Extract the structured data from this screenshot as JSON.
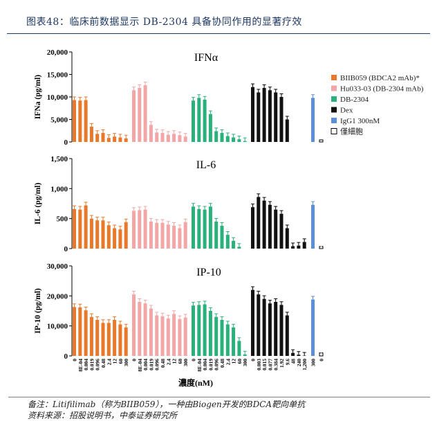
{
  "header": {
    "title": "图表48：临床前数据显示 DB-2304 具备协同作用的显著疗效"
  },
  "footnote": {
    "line1": "备注：Litifilimab（称为BIIB059），一种由Biogen开发的BDCA靶向单抗",
    "line2": "资料来源：招股说明书，中泰证券研究所"
  },
  "colors": {
    "biib059": "#e8782a",
    "hu033": "#f2a6a6",
    "db2304": "#2ab07a",
    "dex": "#111111",
    "igg1": "#5b8fd6",
    "cells": "#ffffff"
  },
  "chart_data": [
    {
      "type": "bar",
      "title": "IFNα",
      "ylabel": "IFNa (pg/ml)",
      "xlabel": "濃度(nM)",
      "ylim": [
        0,
        20000
      ],
      "yticks": [
        "0",
        "5,000",
        "10,000",
        "15,000",
        "20,000"
      ],
      "series": [
        {
          "name": "BIIB059 (BDCA2 mAb)*",
          "values": [
            9300,
            9200,
            9300,
            3400,
            1800,
            2000,
            900,
            1200,
            1000,
            800
          ]
        },
        {
          "name": "Hu033-03 (DB-2304 mAb)",
          "values": [
            11500,
            12000,
            12600,
            3800,
            2100,
            2000,
            1600,
            1800,
            1500,
            1200
          ]
        },
        {
          "name": "DB-2304",
          "values": [
            9200,
            9800,
            9400,
            6200,
            2400,
            2000,
            1300,
            1000,
            600,
            200
          ]
        },
        {
          "name": "Dex",
          "values": [
            12200,
            11000,
            12000,
            11500,
            11000,
            10000,
            5000,
            0,
            0,
            0
          ]
        },
        {
          "name": "IgG1 300nM",
          "values": [
            9800
          ]
        },
        {
          "name": "僅細胞",
          "values": [
            0
          ]
        }
      ]
    },
    {
      "type": "bar",
      "title": "IL-6",
      "ylabel": "IL-6 (pg/ml)",
      "xlabel": "濃度(nM)",
      "ylim": [
        0,
        1500
      ],
      "yticks": [
        "0",
        "500",
        "1,000",
        "1,500"
      ],
      "series": [
        {
          "name": "BIIB059 (BDCA2 mAb)*",
          "values": [
            660,
            650,
            720,
            500,
            470,
            470,
            390,
            340,
            320,
            440
          ]
        },
        {
          "name": "Hu033-03 (DB-2304 mAb)",
          "values": [
            630,
            640,
            650,
            450,
            430,
            430,
            400,
            380,
            340,
            440
          ]
        },
        {
          "name": "DB-2304",
          "values": [
            700,
            660,
            650,
            700,
            450,
            380,
            230,
            130,
            30,
            0
          ]
        },
        {
          "name": "Dex",
          "values": [
            690,
            860,
            800,
            730,
            650,
            580,
            340,
            40,
            50,
            110
          ]
        },
        {
          "name": "IgG1 300nM",
          "values": [
            730
          ]
        },
        {
          "name": "僅細胞",
          "values": [
            20
          ]
        }
      ]
    },
    {
      "type": "bar",
      "title": "IP-10",
      "ylabel": "IP-10 (pg/ml)",
      "xlabel": "濃度(nM)",
      "ylim": [
        0,
        30000
      ],
      "yticks": [
        "0",
        "10,000",
        "20,000",
        "30,000"
      ],
      "series": [
        {
          "name": "BIIB059 (BDCA2 mAb)*",
          "values": [
            16300,
            16200,
            15200,
            13000,
            12000,
            11000,
            11000,
            12000,
            10500,
            9500
          ]
        },
        {
          "name": "Hu033-03 (DB-2304 mAb)",
          "values": [
            20500,
            18000,
            17500,
            15800,
            13500,
            13200,
            12500,
            14000,
            12300,
            12800
          ]
        },
        {
          "name": "DB-2304",
          "values": [
            16800,
            17000,
            17200,
            15000,
            13000,
            12000,
            10500,
            9500,
            5000,
            500
          ]
        },
        {
          "name": "Dex",
          "values": [
            22000,
            20500,
            19000,
            17500,
            18000,
            17000,
            13500,
            1000,
            400,
            100
          ]
        },
        {
          "name": "IgG1 300nM",
          "values": [
            18800
          ]
        },
        {
          "name": "僅細胞",
          "values": [
            1000
          ]
        }
      ],
      "x_tick_groups": [
        [
          "0",
          "8E-04",
          "0.004",
          "0.019",
          "0.096",
          "0.48",
          "2.4",
          "12",
          "60",
          "300"
        ],
        [
          "0",
          "8E-04",
          "0.004",
          "0.019",
          "0.096",
          "0.48",
          "2.4",
          "12",
          "60",
          "300"
        ],
        [
          "0",
          "8E-04",
          "0.004",
          "0.019",
          "0.096",
          "0.48",
          "2.4",
          "12",
          "60",
          "300"
        ],
        [
          "0",
          "0.003",
          "0.015",
          "0.077",
          "0.384",
          "1.92",
          "9.6",
          "48",
          "240",
          "1,200"
        ],
        [
          "300"
        ],
        [
          "0"
        ]
      ]
    }
  ],
  "legend": [
    {
      "label": "BIIB059 (BDCA2 mAb)*",
      "color": "#e8782a"
    },
    {
      "label": "Hu033-03 (DB-2304 mAb)",
      "color": "#f2a6a6"
    },
    {
      "label": "DB-2304",
      "color": "#2ab07a"
    },
    {
      "label": "Dex",
      "color": "#111111"
    },
    {
      "label": "IgG1 300nM",
      "color": "#5b8fd6"
    },
    {
      "label": "僅細胞",
      "color": "#ffffff"
    }
  ]
}
